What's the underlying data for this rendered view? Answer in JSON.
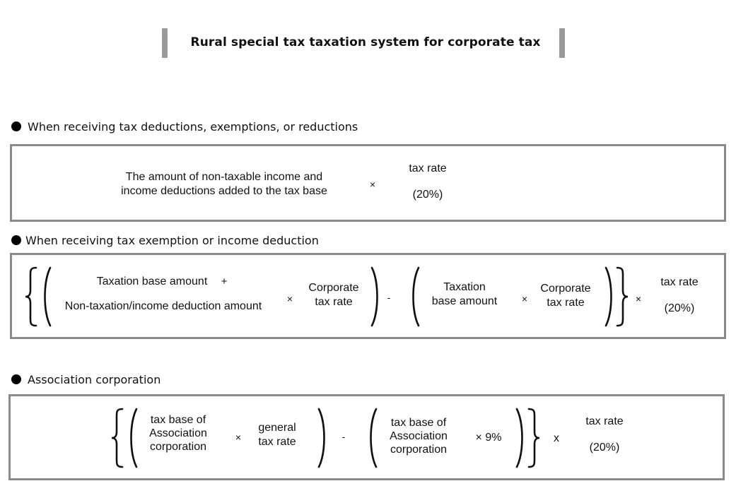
{
  "title": "Rural special tax taxation system for corporate tax",
  "sections": [
    {
      "heading": "When receiving tax deductions, exemptions, or reductions",
      "formula": {
        "term1_line1": "The amount of non-taxable income and",
        "term1_line2": "income deductions added to the tax base",
        "times": "×",
        "rate_label": "tax rate",
        "rate_value": "(20%)"
      }
    },
    {
      "heading": "When receiving tax exemption or income deduction",
      "formula": {
        "a_line1": "Taxation base amount",
        "a_plus": "+",
        "a_line2": "Non-taxation/income deduction amount",
        "times1": "×",
        "corp_rate1_line1": "Corporate",
        "corp_rate1_line2": "tax rate",
        "minus": "-",
        "b_line1": "Taxation",
        "b_line2": "base amount",
        "times2": "×",
        "corp_rate2_line1": "Corporate",
        "corp_rate2_line2": "tax rate",
        "times3": "×",
        "rate_label": "tax rate",
        "rate_value": "(20%)"
      }
    },
    {
      "heading": "Association corporation",
      "formula": {
        "a_line1": "tax base of",
        "a_line2": "Association",
        "a_line3": "corporation",
        "times1": "×",
        "gen_line1": "general",
        "gen_line2": "tax rate",
        "minus": "-",
        "b_line1": "tax base of",
        "b_line2": "Association",
        "b_line3": "corporation",
        "times_9": "× 9%",
        "times_x": "x",
        "rate_label": "tax rate",
        "rate_value": "(20%)"
      }
    }
  ]
}
